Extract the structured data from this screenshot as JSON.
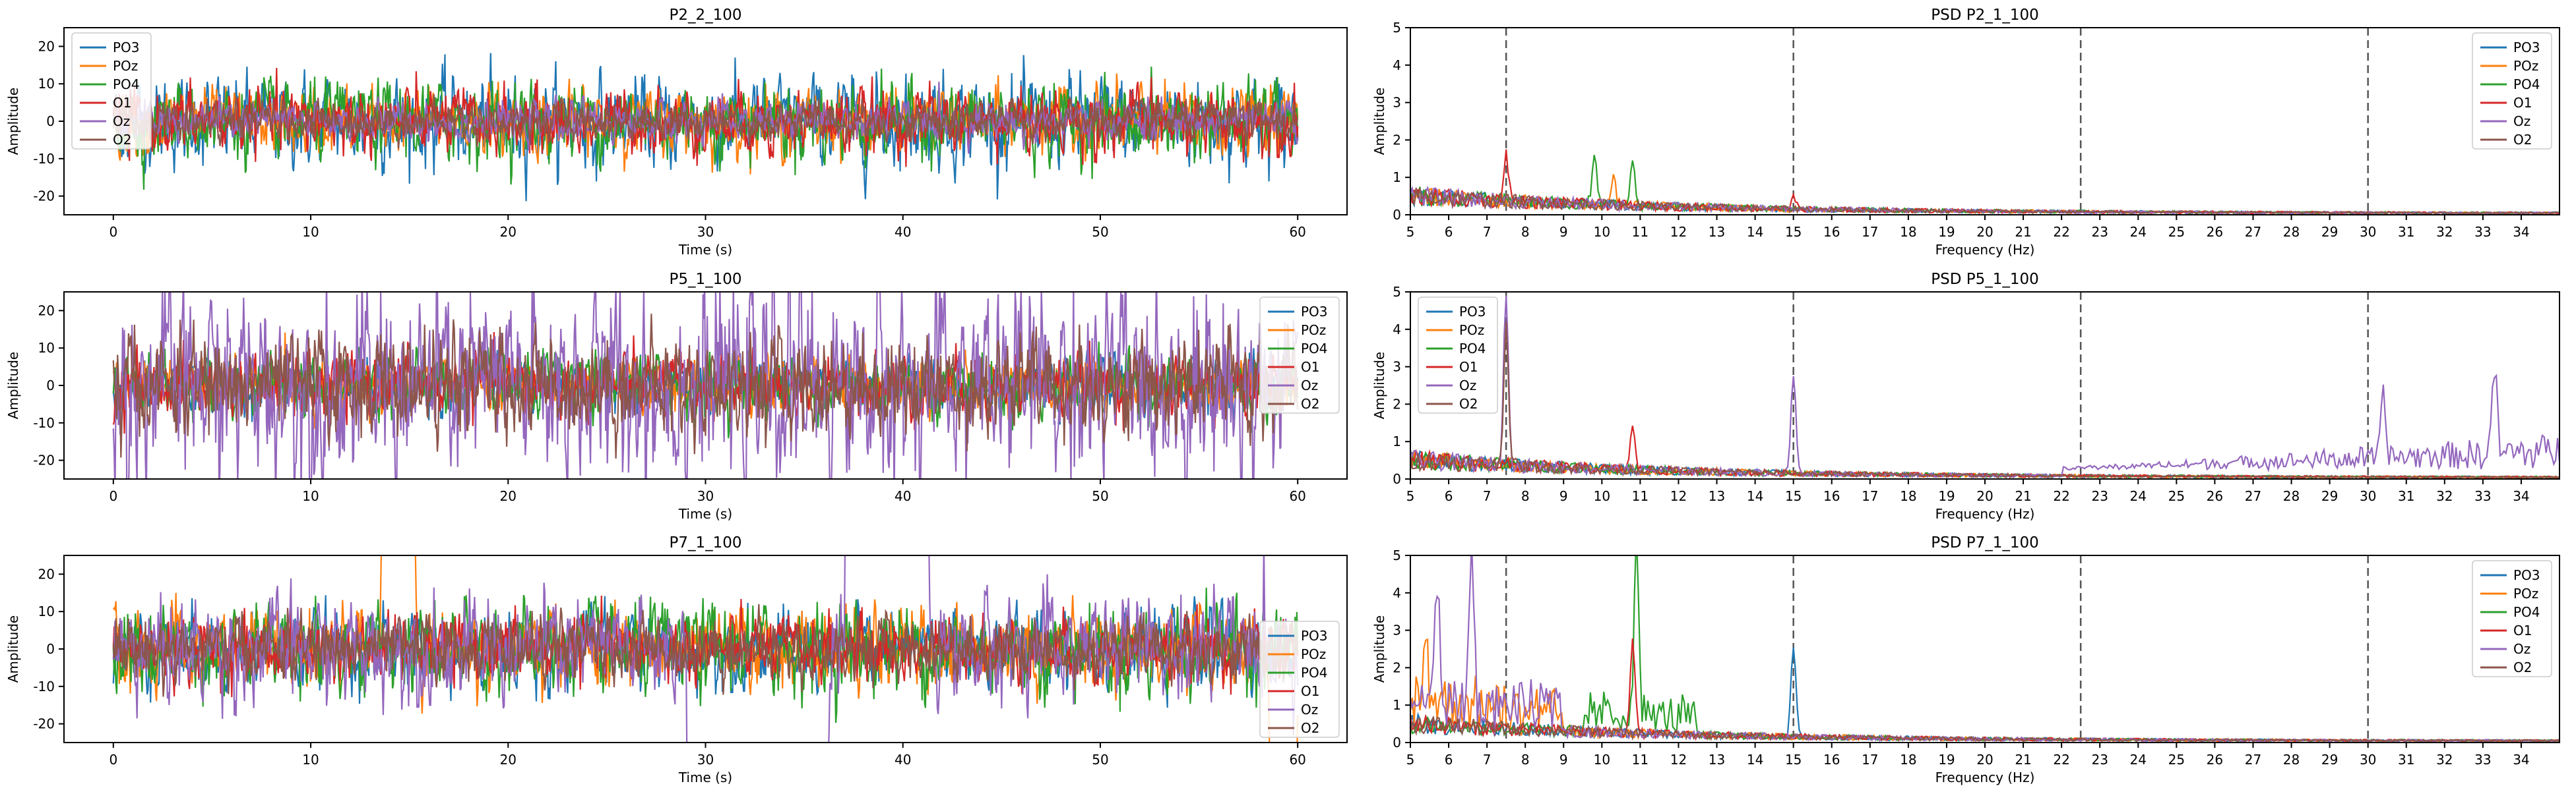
{
  "colors": {
    "PO3": "#1f77b4",
    "POz": "#ff7f0e",
    "PO4": "#2ca02c",
    "O1": "#d62728",
    "Oz": "#9467bd",
    "O2": "#8c564b",
    "vline": "#555555"
  },
  "chart_data": [
    {
      "type": "line",
      "title": "P2_2_100",
      "xlabel": "Time (s)",
      "ylabel": "Amplitude",
      "xlim": [
        -2.5,
        62.5
      ],
      "ylim": [
        -25,
        25
      ],
      "xticks": [
        0,
        10,
        20,
        30,
        40,
        50,
        60
      ],
      "yticks": [
        -20,
        -10,
        0,
        10,
        20
      ],
      "legend": [
        "PO3",
        "POz",
        "PO4",
        "O1",
        "Oz",
        "O2"
      ],
      "legend_position": "upper-left",
      "series_amplitude": {
        "PO3": 7,
        "POz": 5,
        "PO4": 6,
        "O1": 5,
        "Oz": 3,
        "O2": 3
      },
      "grid": false
    },
    {
      "type": "line",
      "title": "PSD P2_1_100",
      "xlabel": "Frequency (Hz)",
      "ylabel": "Amplitude",
      "xlim": [
        5,
        35
      ],
      "ylim": [
        0,
        5
      ],
      "xticks": [
        5,
        6,
        7,
        8,
        9,
        10,
        11,
        12,
        13,
        14,
        15,
        16,
        17,
        18,
        19,
        20,
        21,
        22,
        23,
        24,
        25,
        26,
        27,
        28,
        29,
        30,
        31,
        32,
        33,
        34
      ],
      "yticks": [
        0,
        1,
        2,
        3,
        4,
        5
      ],
      "vlines": [
        7.5,
        15,
        22.5,
        30
      ],
      "legend": [
        "PO3",
        "POz",
        "PO4",
        "O1",
        "Oz",
        "O2"
      ],
      "legend_position": "upper-right",
      "peaks": [
        {
          "series": "O1",
          "x": 7.5,
          "y": 1.7
        },
        {
          "series": "PO4",
          "x": 9.8,
          "y": 1.6
        },
        {
          "series": "PO4",
          "x": 10.8,
          "y": 1.4
        },
        {
          "series": "POz",
          "x": 10.3,
          "y": 1.0
        },
        {
          "series": "O1",
          "x": 15,
          "y": 0.5
        }
      ],
      "grid": false
    },
    {
      "type": "line",
      "title": "P5_1_100",
      "xlabel": "Time (s)",
      "ylabel": "Amplitude",
      "xlim": [
        -2.5,
        62.5
      ],
      "ylim": [
        -25,
        25
      ],
      "xticks": [
        0,
        10,
        20,
        30,
        40,
        50,
        60
      ],
      "yticks": [
        -20,
        -10,
        0,
        10,
        20
      ],
      "legend": [
        "PO3",
        "POz",
        "PO4",
        "O1",
        "Oz",
        "O2"
      ],
      "legend_position": "upper-right",
      "series_amplitude": {
        "PO3": 4,
        "POz": 4,
        "PO4": 5,
        "O1": 5,
        "Oz": 15,
        "O2": 8
      },
      "grid": false
    },
    {
      "type": "line",
      "title": "PSD P5_1_100",
      "xlabel": "Frequency (Hz)",
      "ylabel": "Amplitude",
      "xlim": [
        5,
        35
      ],
      "ylim": [
        0,
        5
      ],
      "xticks": [
        5,
        6,
        7,
        8,
        9,
        10,
        11,
        12,
        13,
        14,
        15,
        16,
        17,
        18,
        19,
        20,
        21,
        22,
        23,
        24,
        25,
        26,
        27,
        28,
        29,
        30,
        31,
        32,
        33,
        34
      ],
      "yticks": [
        0,
        1,
        2,
        3,
        4,
        5
      ],
      "vlines": [
        7.5,
        15,
        22.5,
        30
      ],
      "legend": [
        "PO3",
        "POz",
        "PO4",
        "O1",
        "Oz",
        "O2"
      ],
      "legend_position": "upper-left",
      "peaks": [
        {
          "series": "Oz",
          "x": 7.5,
          "y": 5.0
        },
        {
          "series": "O2",
          "x": 7.5,
          "y": 4.2
        },
        {
          "series": "Oz",
          "x": 15,
          "y": 2.8
        },
        {
          "series": "O1",
          "x": 10.8,
          "y": 1.4
        },
        {
          "series": "Oz",
          "x": 33.3,
          "y": 2.4
        },
        {
          "series": "Oz",
          "x": 30.4,
          "y": 1.7
        }
      ],
      "grid": false
    },
    {
      "type": "line",
      "title": "P7_1_100",
      "xlabel": "Time (s)",
      "ylabel": "Amplitude",
      "xlim": [
        -2.5,
        62.5
      ],
      "ylim": [
        -25,
        25
      ],
      "xticks": [
        0,
        10,
        20,
        30,
        40,
        50,
        60
      ],
      "yticks": [
        -20,
        -10,
        0,
        10,
        20
      ],
      "legend": [
        "PO3",
        "POz",
        "PO4",
        "O1",
        "Oz",
        "O2"
      ],
      "legend_position": "lower-right",
      "series_amplitude": {
        "PO3": 6,
        "POz": 6,
        "PO4": 7,
        "O1": 5,
        "Oz": 8,
        "O2": 5
      },
      "grid": false
    },
    {
      "type": "line",
      "title": "PSD P7_1_100",
      "xlabel": "Frequency (Hz)",
      "ylabel": "Amplitude",
      "xlim": [
        5,
        35
      ],
      "ylim": [
        0,
        5
      ],
      "xticks": [
        5,
        6,
        7,
        8,
        9,
        10,
        11,
        12,
        13,
        14,
        15,
        16,
        17,
        18,
        19,
        20,
        21,
        22,
        23,
        24,
        25,
        26,
        27,
        28,
        29,
        30,
        31,
        32,
        33,
        34
      ],
      "yticks": [
        0,
        1,
        2,
        3,
        4,
        5
      ],
      "vlines": [
        7.5,
        15,
        22.5,
        30
      ],
      "legend": [
        "PO3",
        "POz",
        "PO4",
        "O1",
        "Oz",
        "O2"
      ],
      "legend_position": "upper-right",
      "peaks": [
        {
          "series": "Oz",
          "x": 5.7,
          "y": 3.7
        },
        {
          "series": "Oz",
          "x": 6.6,
          "y": 4.6
        },
        {
          "series": "PO4",
          "x": 10.9,
          "y": 4.8
        },
        {
          "series": "O1",
          "x": 10.8,
          "y": 2.8
        },
        {
          "series": "PO3",
          "x": 15,
          "y": 2.6
        },
        {
          "series": "POz",
          "x": 5.4,
          "y": 2.3
        }
      ],
      "grid": false
    }
  ]
}
